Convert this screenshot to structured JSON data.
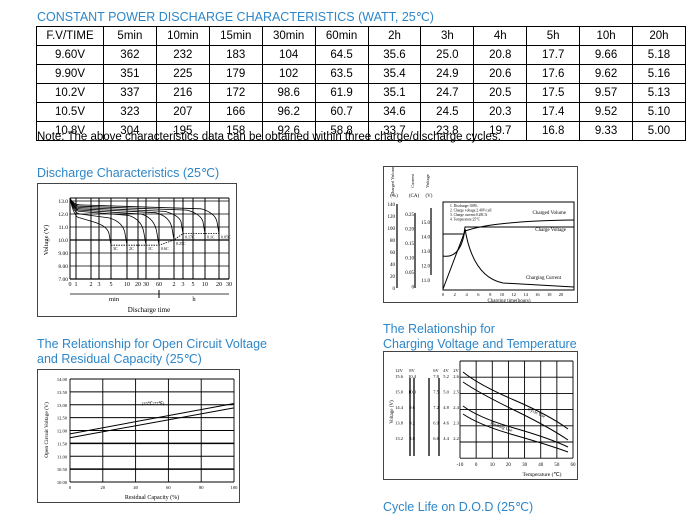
{
  "table": {
    "title": "CONSTANT POWER DISCHARGE CHARACTERISTICS (WATT, 25℃)",
    "headers": [
      "F.V/TIME",
      "5min",
      "10min",
      "15min",
      "30min",
      "60min",
      "2h",
      "3h",
      "4h",
      "5h",
      "10h",
      "20h"
    ],
    "rows": [
      [
        "9.60V",
        "362",
        "232",
        "183",
        "104",
        "64.5",
        "35.6",
        "25.0",
        "20.8",
        "17.7",
        "9.66",
        "5.18"
      ],
      [
        "9.90V",
        "351",
        "225",
        "179",
        "102",
        "63.5",
        "35.4",
        "24.9",
        "20.6",
        "17.6",
        "9.62",
        "5.16"
      ],
      [
        "10.2V",
        "337",
        "216",
        "172",
        "98.6",
        "61.9",
        "35.1",
        "24.7",
        "20.5",
        "17.5",
        "9.57",
        "5.13"
      ],
      [
        "10.5V",
        "323",
        "207",
        "166",
        "96.2",
        "60.7",
        "34.6",
        "24.5",
        "20.3",
        "17.4",
        "9.52",
        "5.10"
      ],
      [
        "10.8V",
        "304",
        "195",
        "158",
        "92.6",
        "58.8",
        "33.7",
        "23.8",
        "19.7",
        "16.8",
        "9.33",
        "5.00"
      ]
    ],
    "note": "Note: The above characteristics data can be obtained within three charge/discharge cycles."
  },
  "discharge": {
    "title": "Discharge Characteristics (25℃)",
    "ylabel": "Voltage (V)",
    "yticks": [
      "13.0",
      "12.0",
      "11.0",
      "10.0",
      "9.00",
      "8.00",
      "7.00"
    ],
    "xticks": [
      "0",
      "1",
      "2",
      "3",
      "5",
      "10",
      "20",
      "30",
      "60",
      "2",
      "3",
      "5",
      "10",
      "20",
      "30"
    ],
    "unit_min": "min",
    "unit_h": "h",
    "xlabel": "Discharge time",
    "curve_labels": [
      "3C",
      "2C",
      "1C",
      "0.6C",
      "0.25C",
      "0.17C",
      "0.1C",
      "0.05C"
    ]
  },
  "charging": {
    "axis_titles": [
      "Charged Volume",
      "Current",
      "Voltage"
    ],
    "axis_units": [
      "(%)",
      "(CA)",
      "(V)"
    ],
    "pct_ticks": [
      "140",
      "120",
      "100",
      "80",
      "60",
      "40",
      "20",
      "0"
    ],
    "ca_ticks": [
      "0.25",
      "0.20",
      "0.15",
      "0.10",
      "0.05",
      "0"
    ],
    "v_ticks": [
      "15.0",
      "14.0",
      "13.0",
      "12.0",
      "11.0"
    ],
    "notes": [
      "1. Discharge:100%",
      "2. Charge voltage:2.40V/cell",
      "3. Charge current:0.28CA",
      "4. Temperature:25°C"
    ],
    "series_labels": [
      "Charged Volume",
      "Charge Voltage",
      "Charging Current"
    ],
    "xticks": [
      "0",
      "2",
      "4",
      "6",
      "8",
      "10",
      "12",
      "14",
      "16",
      "18",
      "20"
    ],
    "xlabel": "Charging time(hours)"
  },
  "ocv": {
    "title_line1": "The Relationship for Open Circuit Voltage",
    "title_line2": "and Residual Capacity (25℃)",
    "ylabel": "Open Circuit Voltage (V)",
    "yticks": [
      "14.00",
      "13.50",
      "13.00",
      "12.50",
      "12.00",
      "11.50",
      "11.00",
      "10.50",
      "10.00"
    ],
    "xticks": [
      "0",
      "20",
      "40",
      "60",
      "80",
      "100"
    ],
    "xlabel": "Residual Capacity (%)",
    "annotation": "(25℃/77℉)"
  },
  "temp": {
    "title_line1": "The Relationship for",
    "title_line2": "Charging Voltage and Temperature",
    "col_headers": [
      "12V",
      "8V",
      "6V",
      "4V",
      "2V"
    ],
    "rows": [
      [
        "15.6",
        "10.4",
        "7.8",
        "5.2",
        "2.6"
      ],
      [
        "15.0",
        "10.0",
        "7.5",
        "5.0",
        "2.5"
      ],
      [
        "14.4",
        "9.6",
        "7.2",
        "4.8",
        "2.4"
      ],
      [
        "13.8",
        "9.2",
        "6.9",
        "4.6",
        "2.3"
      ],
      [
        "13.2",
        "8.8",
        "6.6",
        "4.4",
        "2.2"
      ]
    ],
    "ylabel": "Voltage (V)",
    "xticks": [
      "-10",
      "0",
      "10",
      "20",
      "30",
      "40",
      "50",
      "60"
    ],
    "xlabel": "Temperature (℃)",
    "band_labels": [
      "Cycle Use",
      "Floating Use"
    ]
  },
  "cycle": {
    "title": "Cycle Life on D.O.D (25℃)"
  }
}
